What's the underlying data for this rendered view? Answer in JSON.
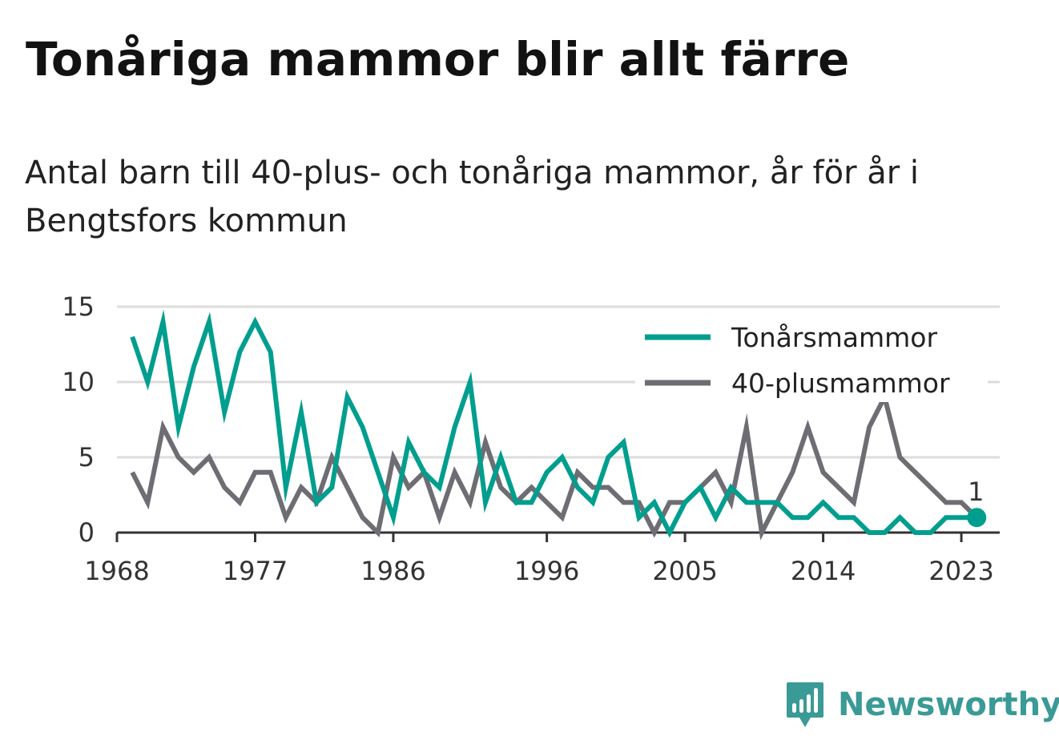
{
  "title": "Tonåriga mammor blir allt färre",
  "subtitle": "Antal barn till 40-plus- och tonåriga mammor, år för år i Bengtsfors kommun",
  "brand": {
    "name": "Newsworthy",
    "icon": "bar-chart-speech-bubble-icon",
    "color": "#3a9a96"
  },
  "chart_data": {
    "type": "line",
    "title": "Tonåriga mammor blir allt färre",
    "subtitle": "Antal barn till 40-plus- och tonåriga mammor, år för år i Bengtsfors kommun",
    "xlabel": "",
    "ylabel": "",
    "x": [
      1969,
      1970,
      1971,
      1972,
      1973,
      1974,
      1975,
      1976,
      1977,
      1978,
      1979,
      1980,
      1981,
      1982,
      1983,
      1984,
      1985,
      1986,
      1987,
      1988,
      1989,
      1990,
      1991,
      1992,
      1993,
      1994,
      1995,
      1996,
      1997,
      1998,
      1999,
      2000,
      2001,
      2002,
      2003,
      2004,
      2005,
      2006,
      2007,
      2008,
      2009,
      2010,
      2011,
      2012,
      2013,
      2014,
      2015,
      2016,
      2017,
      2018,
      2019,
      2020,
      2021,
      2022,
      2023,
      2024
    ],
    "x_ticks": [
      1968,
      1977,
      1986,
      1996,
      2005,
      2014,
      2023
    ],
    "xlim": [
      1968,
      2025.5
    ],
    "y_ticks": [
      0,
      5,
      10,
      15
    ],
    "ylim": [
      0,
      15
    ],
    "grid": true,
    "legend_position": "top-right",
    "series": [
      {
        "name": "Tonårsmammor",
        "color": "#009e8e",
        "values": [
          13,
          10,
          14,
          7,
          11,
          14,
          8,
          12,
          14,
          12,
          3,
          8,
          2,
          3,
          9,
          7,
          4,
          1,
          6,
          4,
          3,
          7,
          10,
          2,
          5,
          2,
          2,
          4,
          5,
          3,
          2,
          5,
          6,
          1,
          2,
          0,
          2,
          3,
          1,
          3,
          2,
          2,
          2,
          1,
          1,
          2,
          1,
          1,
          0,
          0,
          1,
          0,
          0,
          1,
          1,
          1
        ],
        "end_label": "1"
      },
      {
        "name": "40-plusmammor",
        "color": "#6e6d73",
        "values": [
          4,
          2,
          7,
          5,
          4,
          5,
          3,
          2,
          4,
          4,
          1,
          3,
          2,
          5,
          3,
          1,
          0,
          5,
          3,
          4,
          1,
          4,
          2,
          6,
          3,
          2,
          3,
          2,
          1,
          4,
          3,
          3,
          2,
          2,
          0,
          2,
          2,
          3,
          4,
          2,
          7,
          0,
          2,
          4,
          7,
          4,
          3,
          2,
          7,
          9,
          5,
          4,
          3,
          2,
          2,
          1
        ]
      }
    ]
  }
}
